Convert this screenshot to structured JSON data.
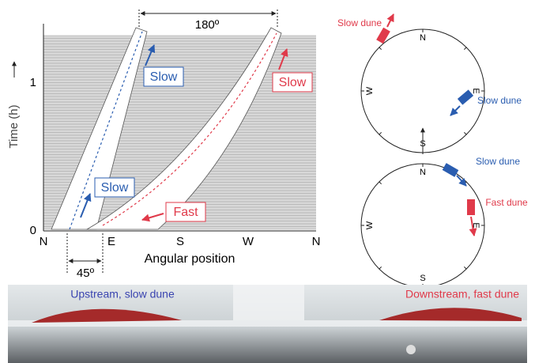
{
  "plot": {
    "y_label": "Time (h)",
    "y_ticks": [
      "0",
      "1"
    ],
    "x_ticks": [
      "N",
      "E",
      "S",
      "W",
      "N"
    ],
    "x_label": "Angular position",
    "span_top": "180º",
    "span_bottom": "45º",
    "annotations": [
      "Slow",
      "Slow",
      "Slow",
      "Fast"
    ]
  },
  "compass_top": {
    "cardinals": [
      "N",
      "E",
      "S",
      "W"
    ],
    "dunes": [
      "Slow dune",
      "Slow dune"
    ]
  },
  "compass_bottom": {
    "cardinals": [
      "N",
      "E",
      "S",
      "W"
    ],
    "dunes": [
      "Slow dune",
      "Fast dune"
    ]
  },
  "photo": {
    "left": "Upstream, slow dune",
    "right": "Downstream, fast dune"
  }
}
